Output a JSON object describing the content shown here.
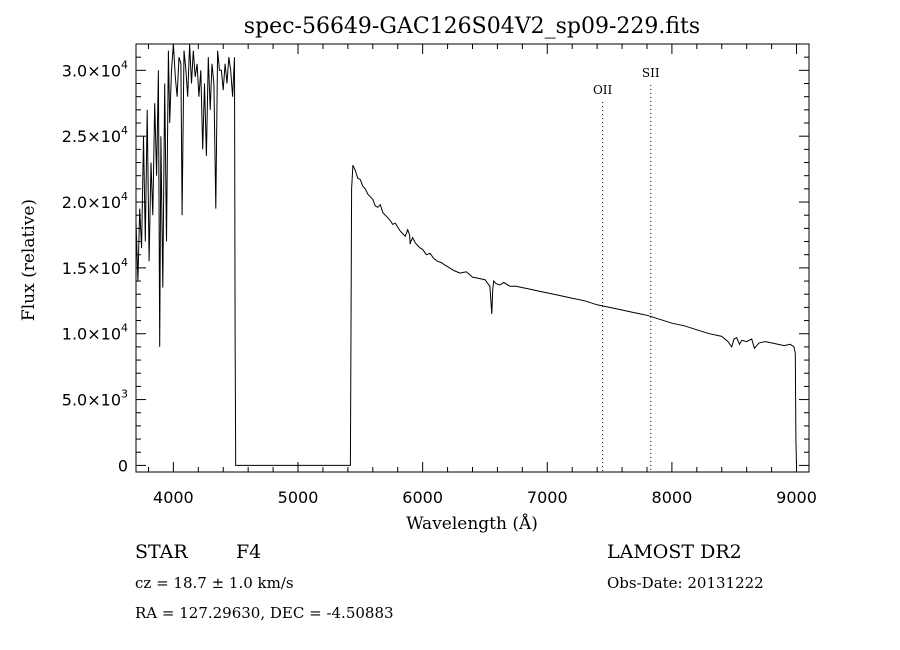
{
  "chart_data": {
    "type": "line",
    "title": "spec-56649-GAC126S04V2_sp09-229.fits",
    "xlabel": "Wavelength (Å)",
    "ylabel": "Flux (relative)",
    "xlim": [
      3700,
      9100
    ],
    "ylim": [
      -500,
      32000
    ],
    "x_ticks": [
      {
        "value": 4000,
        "label": "4000"
      },
      {
        "value": 5000,
        "label": "5000"
      },
      {
        "value": 6000,
        "label": "6000"
      },
      {
        "value": 7000,
        "label": "7000"
      },
      {
        "value": 8000,
        "label": "8000"
      },
      {
        "value": 9000,
        "label": "9000"
      }
    ],
    "y_ticks": [
      {
        "value": 0,
        "mant": "0",
        "exp": ""
      },
      {
        "value": 5000,
        "mant": "5.0×10",
        "exp": "3"
      },
      {
        "value": 10000,
        "mant": "1.0×10",
        "exp": "4"
      },
      {
        "value": 15000,
        "mant": "1.5×10",
        "exp": "4"
      },
      {
        "value": 20000,
        "mant": "2.0×10",
        "exp": "4"
      },
      {
        "value": 25000,
        "mant": "2.5×10",
        "exp": "4"
      },
      {
        "value": 30000,
        "mant": "3.0×10",
        "exp": "4"
      }
    ],
    "series": [
      {
        "x": [
          3700,
          3715,
          3730,
          3745,
          3760,
          3775,
          3790,
          3805,
          3820,
          3835,
          3850,
          3865,
          3880,
          3890,
          3900,
          3915,
          3930,
          3945,
          3960,
          3970,
          3985,
          4000,
          4015,
          4030,
          4045,
          4060,
          4070,
          4085,
          4100,
          4115,
          4130,
          4145,
          4160,
          4175,
          4190,
          4205,
          4220,
          4235,
          4250,
          4265,
          4280,
          4295,
          4310,
          4325,
          4340,
          4355,
          4370,
          4385,
          4400,
          4415,
          4430,
          4445,
          4460,
          4475,
          4490,
          4495,
          4500,
          5300,
          5400,
          5420,
          5430,
          5440,
          5460,
          5480,
          5500,
          5520,
          5540,
          5560,
          5580,
          5600,
          5620,
          5640,
          5660,
          5680,
          5700,
          5720,
          5740,
          5760,
          5780,
          5800,
          5820,
          5840,
          5860,
          5880,
          5895,
          5900,
          5905,
          5920,
          5940,
          5960,
          5980,
          6000,
          6030,
          6060,
          6090,
          6120,
          6150,
          6180,
          6200,
          6250,
          6300,
          6350,
          6400,
          6450,
          6500,
          6540,
          6555,
          6562,
          6570,
          6590,
          6620,
          6650,
          6700,
          6750,
          6800,
          6850,
          6900,
          6950,
          7000,
          7100,
          7200,
          7300,
          7400,
          7500,
          7600,
          7700,
          7800,
          7900,
          8000,
          8100,
          8200,
          8300,
          8400,
          8450,
          8480,
          8498,
          8520,
          8542,
          8560,
          8600,
          8640,
          8662,
          8700,
          8750,
          8800,
          8850,
          8900,
          8950,
          8980,
          8990,
          8995,
          9000
        ],
        "y": [
          18500,
          14000,
          19500,
          16500,
          25000,
          17000,
          27000,
          15500,
          23000,
          19000,
          27500,
          22000,
          30000,
          9000,
          25000,
          13500,
          29000,
          17000,
          31500,
          26000,
          30000,
          32000,
          29500,
          28000,
          31000,
          30500,
          19000,
          31500,
          30000,
          28000,
          32000,
          29000,
          31500,
          29500,
          30500,
          28000,
          30000,
          24000,
          29000,
          23500,
          31000,
          27000,
          30500,
          29000,
          19500,
          31500,
          30000,
          30000,
          28500,
          30500,
          29000,
          31000,
          30000,
          28000,
          31000,
          10000,
          0,
          0,
          0,
          0,
          21000,
          22800,
          22400,
          21800,
          21700,
          21200,
          21000,
          20600,
          20400,
          20200,
          19700,
          19600,
          19800,
          19200,
          19000,
          18800,
          18600,
          18300,
          18400,
          18100,
          17800,
          17600,
          17400,
          17900,
          17500,
          16800,
          17000,
          17300,
          16900,
          16700,
          16500,
          16400,
          16000,
          16100,
          15700,
          15500,
          15400,
          15200,
          15100,
          14800,
          14600,
          14700,
          14300,
          14200,
          14100,
          13600,
          11500,
          13300,
          14000,
          13800,
          13700,
          13900,
          13600,
          13600,
          13500,
          13400,
          13300,
          13200,
          13100,
          12900,
          12700,
          12500,
          12200,
          12000,
          11800,
          11600,
          11400,
          11100,
          10800,
          10600,
          10300,
          10000,
          9800,
          9400,
          9000,
          9600,
          9700,
          9200,
          9500,
          9400,
          9600,
          8900,
          9300,
          9400,
          9300,
          9200,
          9100,
          9200,
          9000,
          8500,
          2000,
          0
        ]
      }
    ],
    "line_markers": [
      {
        "x": 7444,
        "label": "OII",
        "label_y": 28200
      },
      {
        "x": 7830,
        "label": "SII",
        "label_y": 29500
      }
    ]
  },
  "info": {
    "object_class": "STAR",
    "subclass": "F4",
    "redshift_text": "cz = 18.7 ± 1.0 km/s",
    "coordinates_text": "RA = 127.29630, DEC =  -4.50883",
    "survey": "LAMOST DR2",
    "obs_date_text": "Obs-Date: 20131222"
  }
}
